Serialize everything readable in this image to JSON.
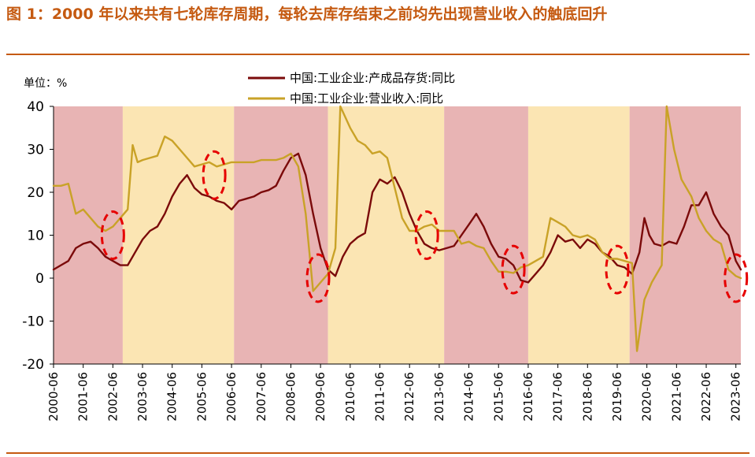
{
  "figure": {
    "title": "图 1：2000 年以来共有七轮库存周期，每轮去库存结束之前均先出现营业收入的触底回升",
    "unit_label": "单位：%"
  },
  "colors": {
    "title": "#c55a11",
    "inventory_line": "#7b0a0a",
    "revenue_line": "#c9a227",
    "destock_band": "#e8b4b4",
    "restock_band": "#fbe5b3",
    "marker": "#e60000"
  },
  "chart_data": {
    "type": "line",
    "title": "",
    "xlabel": "",
    "ylabel": "单位：%",
    "ylim": [
      -20,
      40
    ],
    "yticks": [
      40,
      30,
      20,
      10,
      0,
      -10,
      -20
    ],
    "xlim": [
      "2000-06",
      "2023-08"
    ],
    "xticks": [
      "2000-06",
      "2001-06",
      "2002-06",
      "2003-06",
      "2004-06",
      "2005-06",
      "2006-06",
      "2007-06",
      "2008-06",
      "2009-06",
      "2010-06",
      "2011-06",
      "2012-06",
      "2013-06",
      "2014-06",
      "2015-06",
      "2016-06",
      "2017-06",
      "2018-06",
      "2019-06",
      "2020-06",
      "2021-06",
      "2022-06",
      "2023-06"
    ],
    "grid": false,
    "legend_position": "top",
    "bands": [
      {
        "from": "2000-06",
        "to": "2002-10",
        "phase": "destock"
      },
      {
        "from": "2002-10",
        "to": "2006-07",
        "phase": "restock"
      },
      {
        "from": "2006-07",
        "to": "2009-09",
        "phase": "destock"
      },
      {
        "from": "2009-09",
        "to": "2013-08",
        "phase": "restock"
      },
      {
        "from": "2013-08",
        "to": "2016-06",
        "phase": "destock"
      },
      {
        "from": "2016-06",
        "to": "2019-11",
        "phase": "restock"
      },
      {
        "from": "2019-11",
        "to": "2023-08",
        "phase": "destock"
      }
    ],
    "markers": [
      {
        "x": "2002-06",
        "y": 10
      },
      {
        "x": "2005-11",
        "y": 24
      },
      {
        "x": "2009-05",
        "y": 0
      },
      {
        "x": "2013-01",
        "y": 10
      },
      {
        "x": "2015-12",
        "y": 2
      },
      {
        "x": "2019-06",
        "y": 2
      },
      {
        "x": "2023-06",
        "y": 0
      }
    ],
    "series": [
      {
        "name": "中国:工业企业:产成品存货:同比",
        "points": [
          [
            "2000-06",
            2
          ],
          [
            "2000-09",
            3
          ],
          [
            "2000-12",
            4
          ],
          [
            "2001-03",
            7
          ],
          [
            "2001-06",
            8
          ],
          [
            "2001-09",
            8.5
          ],
          [
            "2001-12",
            7
          ],
          [
            "2002-03",
            5
          ],
          [
            "2002-06",
            4
          ],
          [
            "2002-09",
            3
          ],
          [
            "2002-12",
            3
          ],
          [
            "2003-03",
            6
          ],
          [
            "2003-06",
            9
          ],
          [
            "2003-09",
            11
          ],
          [
            "2003-12",
            12
          ],
          [
            "2004-03",
            15
          ],
          [
            "2004-06",
            19
          ],
          [
            "2004-09",
            22
          ],
          [
            "2004-12",
            24
          ],
          [
            "2005-03",
            21
          ],
          [
            "2005-06",
            19.5
          ],
          [
            "2005-09",
            19
          ],
          [
            "2005-12",
            18
          ],
          [
            "2006-03",
            17.5
          ],
          [
            "2006-06",
            16
          ],
          [
            "2006-09",
            18
          ],
          [
            "2006-12",
            18.5
          ],
          [
            "2007-03",
            19
          ],
          [
            "2007-06",
            20
          ],
          [
            "2007-09",
            20.5
          ],
          [
            "2007-12",
            21.5
          ],
          [
            "2008-03",
            25
          ],
          [
            "2008-06",
            28
          ],
          [
            "2008-09",
            29
          ],
          [
            "2008-12",
            24
          ],
          [
            "2009-03",
            15
          ],
          [
            "2009-06",
            7
          ],
          [
            "2009-09",
            2
          ],
          [
            "2009-12",
            0.5
          ],
          [
            "2010-03",
            5
          ],
          [
            "2010-06",
            8
          ],
          [
            "2010-09",
            9.5
          ],
          [
            "2010-12",
            10.5
          ],
          [
            "2011-03",
            20
          ],
          [
            "2011-06",
            23
          ],
          [
            "2011-09",
            22
          ],
          [
            "2011-12",
            23.5
          ],
          [
            "2012-03",
            20
          ],
          [
            "2012-06",
            15
          ],
          [
            "2012-09",
            11
          ],
          [
            "2012-12",
            8
          ],
          [
            "2013-03",
            7
          ],
          [
            "2013-06",
            6.5
          ],
          [
            "2013-09",
            7
          ],
          [
            "2013-12",
            7.5
          ],
          [
            "2014-03",
            10
          ],
          [
            "2014-06",
            12.5
          ],
          [
            "2014-09",
            15
          ],
          [
            "2014-12",
            12
          ],
          [
            "2015-03",
            8
          ],
          [
            "2015-06",
            5
          ],
          [
            "2015-09",
            4.5
          ],
          [
            "2015-12",
            3
          ],
          [
            "2016-03",
            -0.5
          ],
          [
            "2016-06",
            -1
          ],
          [
            "2016-09",
            1
          ],
          [
            "2016-12",
            3
          ],
          [
            "2017-03",
            6
          ],
          [
            "2017-06",
            10
          ],
          [
            "2017-09",
            8.5
          ],
          [
            "2017-12",
            9
          ],
          [
            "2018-03",
            7
          ],
          [
            "2018-06",
            9
          ],
          [
            "2018-09",
            8
          ],
          [
            "2018-12",
            6
          ],
          [
            "2019-03",
            5
          ],
          [
            "2019-06",
            3
          ],
          [
            "2019-09",
            2.5
          ],
          [
            "2019-12",
            1
          ],
          [
            "2020-03",
            6
          ],
          [
            "2020-05",
            14
          ],
          [
            "2020-07",
            10
          ],
          [
            "2020-09",
            8
          ],
          [
            "2020-12",
            7.5
          ],
          [
            "2021-03",
            8.5
          ],
          [
            "2021-06",
            8
          ],
          [
            "2021-09",
            12
          ],
          [
            "2021-12",
            17
          ],
          [
            "2022-03",
            17
          ],
          [
            "2022-06",
            20
          ],
          [
            "2022-09",
            15
          ],
          [
            "2022-12",
            12
          ],
          [
            "2023-03",
            10
          ],
          [
            "2023-06",
            4
          ],
          [
            "2023-08",
            2
          ]
        ]
      },
      {
        "name": "中国:工业企业:营业收入:同比",
        "points": [
          [
            "2000-06",
            21.5
          ],
          [
            "2000-09",
            21.5
          ],
          [
            "2000-12",
            22
          ],
          [
            "2001-03",
            15
          ],
          [
            "2001-06",
            16
          ],
          [
            "2001-09",
            14
          ],
          [
            "2001-12",
            12
          ],
          [
            "2002-03",
            11
          ],
          [
            "2002-06",
            12
          ],
          [
            "2002-09",
            14
          ],
          [
            "2002-12",
            16
          ],
          [
            "2003-02",
            31
          ],
          [
            "2003-04",
            27
          ],
          [
            "2003-06",
            27.5
          ],
          [
            "2003-09",
            28
          ],
          [
            "2003-12",
            28.5
          ],
          [
            "2004-03",
            33
          ],
          [
            "2004-06",
            32
          ],
          [
            "2004-09",
            30
          ],
          [
            "2004-12",
            28
          ],
          [
            "2005-03",
            26
          ],
          [
            "2005-06",
            26.5
          ],
          [
            "2005-09",
            27
          ],
          [
            "2005-12",
            26
          ],
          [
            "2006-03",
            26.5
          ],
          [
            "2006-06",
            27
          ],
          [
            "2006-09",
            27
          ],
          [
            "2006-12",
            27
          ],
          [
            "2007-03",
            27
          ],
          [
            "2007-06",
            27.5
          ],
          [
            "2007-09",
            27.5
          ],
          [
            "2007-12",
            27.5
          ],
          [
            "2008-03",
            28
          ],
          [
            "2008-06",
            29
          ],
          [
            "2008-09",
            26
          ],
          [
            "2008-12",
            15
          ],
          [
            "2009-03",
            -3
          ],
          [
            "2009-06",
            -1
          ],
          [
            "2009-09",
            1
          ],
          [
            "2009-12",
            7
          ],
          [
            "2010-02",
            40
          ],
          [
            "2010-06",
            35
          ],
          [
            "2010-09",
            32
          ],
          [
            "2010-12",
            31
          ],
          [
            "2011-03",
            29
          ],
          [
            "2011-06",
            29.5
          ],
          [
            "2011-09",
            28
          ],
          [
            "2011-12",
            21
          ],
          [
            "2012-03",
            14
          ],
          [
            "2012-06",
            11
          ],
          [
            "2012-09",
            11
          ],
          [
            "2012-12",
            12
          ],
          [
            "2013-03",
            12.5
          ],
          [
            "2013-06",
            11
          ],
          [
            "2013-09",
            11
          ],
          [
            "2013-12",
            11
          ],
          [
            "2014-03",
            8
          ],
          [
            "2014-06",
            8.5
          ],
          [
            "2014-09",
            7.5
          ],
          [
            "2014-12",
            7
          ],
          [
            "2015-03",
            4
          ],
          [
            "2015-06",
            1.5
          ],
          [
            "2015-09",
            1.5
          ],
          [
            "2015-12",
            1.2
          ],
          [
            "2016-03",
            2.5
          ],
          [
            "2016-06",
            3
          ],
          [
            "2016-09",
            4
          ],
          [
            "2016-12",
            5
          ],
          [
            "2017-03",
            14
          ],
          [
            "2017-06",
            13
          ],
          [
            "2017-09",
            12
          ],
          [
            "2017-12",
            10
          ],
          [
            "2018-03",
            9.5
          ],
          [
            "2018-06",
            10
          ],
          [
            "2018-09",
            9
          ],
          [
            "2018-12",
            6
          ],
          [
            "2019-03",
            4.5
          ],
          [
            "2019-06",
            4.5
          ],
          [
            "2019-09",
            4
          ],
          [
            "2019-12",
            3.5
          ],
          [
            "2020-02",
            -17
          ],
          [
            "2020-05",
            -5
          ],
          [
            "2020-08",
            -1
          ],
          [
            "2020-12",
            3
          ],
          [
            "2021-02",
            40
          ],
          [
            "2021-05",
            30
          ],
          [
            "2021-08",
            23
          ],
          [
            "2021-12",
            19
          ],
          [
            "2022-03",
            14
          ],
          [
            "2022-06",
            11
          ],
          [
            "2022-09",
            9
          ],
          [
            "2022-12",
            8
          ],
          [
            "2023-03",
            2
          ],
          [
            "2023-06",
            0.5
          ],
          [
            "2023-08",
            0
          ]
        ]
      }
    ]
  }
}
